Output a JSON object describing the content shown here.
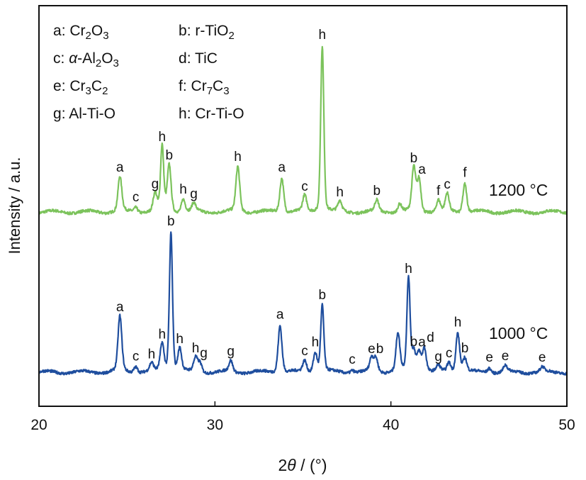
{
  "chart_data": {
    "type": "line",
    "title": "",
    "xlabel": "2θ / (°)",
    "ylabel": "Intensity / a.u.",
    "xlim": [
      20,
      50
    ],
    "ylim": [
      0,
      100
    ],
    "xticks": [
      20,
      30,
      40,
      50
    ],
    "grid": false,
    "legend": {
      "placement": "top-left",
      "entries": [
        "a: Cr2O3",
        "b: r-TiO2",
        "c: α-Al2O3",
        "d: TiC",
        "e: Cr3C2",
        "f: Cr7C3",
        "g: Al-Ti-O",
        "h: Cr-Ti-O"
      ]
    },
    "series": [
      {
        "name": "1200 °C",
        "color": "#7cc35c",
        "baseline": 48.5,
        "peaks": [
          {
            "x": 24.6,
            "h": 8.7,
            "label": "a"
          },
          {
            "x": 25.5,
            "h": 1.2,
            "label": "c"
          },
          {
            "x": 26.6,
            "h": 4.5,
            "label": "g"
          },
          {
            "x": 27.0,
            "h": 16.3,
            "label": "h"
          },
          {
            "x": 27.4,
            "h": 11.7,
            "label": "b"
          },
          {
            "x": 28.2,
            "h": 3.2,
            "label": "h"
          },
          {
            "x": 28.8,
            "h": 2.0,
            "label": "g"
          },
          {
            "x": 31.3,
            "h": 11.3,
            "label": "h"
          },
          {
            "x": 33.8,
            "h": 8.7,
            "label": "a"
          },
          {
            "x": 35.1,
            "h": 3.9,
            "label": "c"
          },
          {
            "x": 36.1,
            "h": 41.8,
            "label": "h"
          },
          {
            "x": 37.1,
            "h": 2.5,
            "label": "h"
          },
          {
            "x": 39.2,
            "h": 2.8,
            "label": "b"
          },
          {
            "x": 40.5,
            "h": 2.0,
            "label": ""
          },
          {
            "x": 41.3,
            "h": 11.0,
            "label": "b"
          },
          {
            "x": 41.6,
            "h": 8.1,
            "label": "a"
          },
          {
            "x": 42.7,
            "h": 2.8,
            "label": "f"
          },
          {
            "x": 43.2,
            "h": 4.4,
            "label": "c"
          },
          {
            "x": 44.2,
            "h": 7.3,
            "label": "f"
          }
        ]
      },
      {
        "name": "1000 °C",
        "color": "#1f4e9e",
        "baseline": 8.5,
        "peaks": [
          {
            "x": 24.6,
            "h": 13.8,
            "label": "a"
          },
          {
            "x": 25.5,
            "h": 1.5,
            "label": "c"
          },
          {
            "x": 26.4,
            "h": 2.0,
            "label": "h"
          },
          {
            "x": 27.0,
            "h": 7.0,
            "label": "h"
          },
          {
            "x": 27.5,
            "h": 35.2,
            "label": "b"
          },
          {
            "x": 28.0,
            "h": 5.8,
            "label": "h"
          },
          {
            "x": 28.9,
            "h": 3.5,
            "label": "h"
          },
          {
            "x": 29.15,
            "h": 2.3,
            "label": "g"
          },
          {
            "x": 30.9,
            "h": 2.7,
            "label": "g"
          },
          {
            "x": 33.7,
            "h": 11.9,
            "label": "a"
          },
          {
            "x": 35.1,
            "h": 2.8,
            "label": "c"
          },
          {
            "x": 35.7,
            "h": 5.0,
            "label": "h"
          },
          {
            "x": 36.1,
            "h": 16.8,
            "label": "b"
          },
          {
            "x": 37.8,
            "h": 0.7,
            "label": "c"
          },
          {
            "x": 38.9,
            "h": 3.4,
            "label": "e"
          },
          {
            "x": 39.15,
            "h": 3.4,
            "label": "b"
          },
          {
            "x": 40.4,
            "h": 9.6,
            "label": ""
          },
          {
            "x": 41.0,
            "h": 23.4,
            "label": "h"
          },
          {
            "x": 41.3,
            "h": 5.1,
            "label": "b"
          },
          {
            "x": 41.6,
            "h": 5.0,
            "label": "a"
          },
          {
            "x": 41.9,
            "h": 6.2,
            "label": "d"
          },
          {
            "x": 42.7,
            "h": 1.4,
            "label": "g"
          },
          {
            "x": 43.3,
            "h": 2.3,
            "label": "c"
          },
          {
            "x": 43.8,
            "h": 10.0,
            "label": "h"
          },
          {
            "x": 44.2,
            "h": 3.5,
            "label": "b"
          },
          {
            "x": 45.6,
            "h": 1.2,
            "label": "e"
          },
          {
            "x": 46.5,
            "h": 1.6,
            "label": "e"
          },
          {
            "x": 48.6,
            "h": 1.2,
            "label": "e"
          }
        ]
      }
    ]
  }
}
